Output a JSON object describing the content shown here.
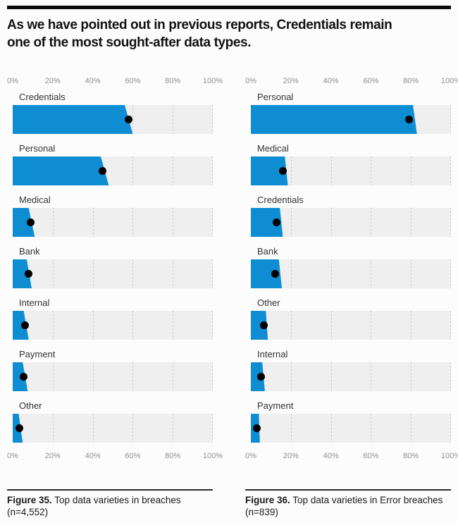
{
  "header": {
    "title_line1": "As we have pointed out in previous reports, Credentials remain",
    "title_line2": "one of the most sought-after data types."
  },
  "colors": {
    "bar_blue": "#0e8dd3",
    "dot_black": "#000000",
    "track_gray": "#efefef",
    "axis_text_gray": "#8f8f8f",
    "rule_black": "#0b0b0b"
  },
  "chart_data": [
    {
      "type": "bar",
      "orientation": "horizontal",
      "unit": "%",
      "figure_label": "Figure 35.",
      "caption": "Top data varieties in breaches (n=4,552)",
      "xlim": [
        0,
        100
      ],
      "ticks": [
        "0%",
        "20%",
        "40%",
        "60%",
        "80%",
        "100%"
      ],
      "grid": "dotted-vertical-every-20",
      "legend": "none",
      "bar_color": "#0e8dd3",
      "rows": [
        {
          "label": "Credentials",
          "value": 58,
          "edge_top": 56,
          "edge_bottom": 60
        },
        {
          "label": "Personal",
          "value": 45,
          "edge_top": 44,
          "edge_bottom": 48
        },
        {
          "label": "Medical",
          "value": 9,
          "edge_top": 8,
          "edge_bottom": 11
        },
        {
          "label": "Bank",
          "value": 8,
          "edge_top": 7,
          "edge_bottom": 9.5
        },
        {
          "label": "Internal",
          "value": 6,
          "edge_top": 5.5,
          "edge_bottom": 8
        },
        {
          "label": "Payment",
          "value": 5.5,
          "edge_top": 5,
          "edge_bottom": 7.5
        },
        {
          "label": "Other",
          "value": 3.5,
          "edge_top": 3,
          "edge_bottom": 5
        }
      ]
    },
    {
      "type": "bar",
      "orientation": "horizontal",
      "unit": "%",
      "figure_label": "Figure 36.",
      "caption": "Top data varieties in Error breaches (n=839)",
      "xlim": [
        0,
        100
      ],
      "ticks": [
        "0%",
        "20%",
        "40%",
        "60%",
        "80%",
        "100%"
      ],
      "grid": "dotted-vertical-every-20",
      "legend": "none",
      "bar_color": "#0e8dd3",
      "rows": [
        {
          "label": "Personal",
          "value": 79,
          "edge_top": 81,
          "edge_bottom": 83
        },
        {
          "label": "Medical",
          "value": 16,
          "edge_top": 17,
          "edge_bottom": 18.5
        },
        {
          "label": "Credentials",
          "value": 13,
          "edge_top": 14.5,
          "edge_bottom": 16
        },
        {
          "label": "Bank",
          "value": 12,
          "edge_top": 14,
          "edge_bottom": 15.5
        },
        {
          "label": "Other",
          "value": 6.5,
          "edge_top": 7.5,
          "edge_bottom": 8.5
        },
        {
          "label": "Internal",
          "value": 5,
          "edge_top": 5.7,
          "edge_bottom": 7
        },
        {
          "label": "Payment",
          "value": 3,
          "edge_top": 4,
          "edge_bottom": 4.5
        }
      ]
    }
  ]
}
